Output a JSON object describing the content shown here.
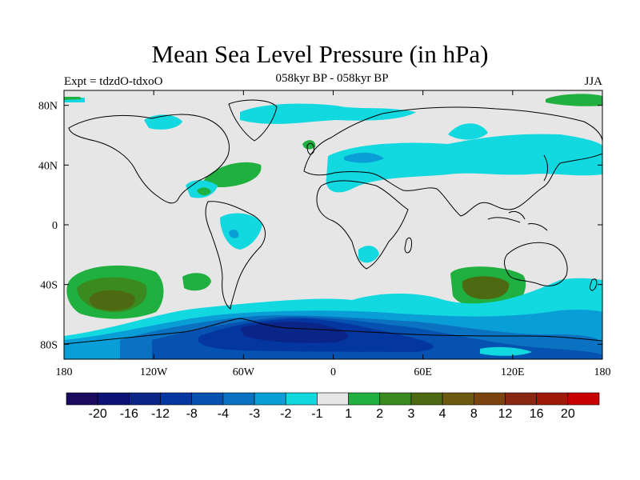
{
  "header": {
    "title": "Mean Sea Level Pressure (in hPa)",
    "subtitle": "058kyr BP - 058kyr BP",
    "left": "Expt = tdzdO-tdxoO",
    "right": "JJA"
  },
  "chart_data": {
    "type": "filled-contour-map",
    "title": "Mean Sea Level Pressure (in hPa)",
    "subtitle": "058kyr BP - 058kyr BP",
    "experiment": "Expt = tdzdO-tdxoO",
    "season": "JJA",
    "x_ticks": [
      {
        "value": -180,
        "label": "180"
      },
      {
        "value": -120,
        "label": "120W"
      },
      {
        "value": -60,
        "label": "60W"
      },
      {
        "value": 0,
        "label": "0"
      },
      {
        "value": 60,
        "label": "60E"
      },
      {
        "value": 120,
        "label": "120E"
      },
      {
        "value": 180,
        "label": "180"
      }
    ],
    "y_ticks": [
      {
        "value": 80,
        "label": "80N"
      },
      {
        "value": 40,
        "label": "40N"
      },
      {
        "value": 0,
        "label": "0"
      },
      {
        "value": -40,
        "label": "40S"
      },
      {
        "value": -80,
        "label": "80S"
      }
    ],
    "colorbar": {
      "colors": [
        "#1a0b5c",
        "#0c1275",
        "#0a2488",
        "#0436a0",
        "#0552b0",
        "#0a72c0",
        "#0a9ed6",
        "#12d8e0",
        "#e6e6e6",
        "#1fb040",
        "#3a8a1f",
        "#4d6a12",
        "#6b5a10",
        "#7a4410",
        "#882810",
        "#a01808",
        "#c80000"
      ],
      "labels": [
        "-20",
        "-16",
        "-12",
        "-8",
        "-4",
        "-3",
        "-2",
        "-1",
        "1",
        "2",
        "3",
        "4",
        "8",
        "12",
        "16",
        "20"
      ]
    }
  }
}
